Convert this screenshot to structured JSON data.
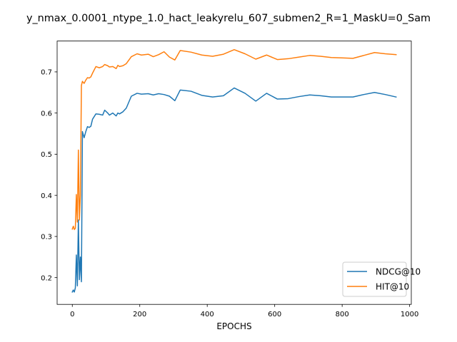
{
  "chart_data": {
    "type": "line",
    "title": "y_nmax_0.0001_ntype_1.0_hact_leakyrelu_607_submen2_R=1_MaskU=0_Sam",
    "xlabel": "EPOCHS",
    "ylabel": "",
    "xlim": [
      -45,
      1005
    ],
    "ylim": [
      0.135,
      0.775
    ],
    "xticks": [
      0,
      200,
      400,
      600,
      800,
      1000
    ],
    "yticks": [
      0.2,
      0.3,
      0.4,
      0.5,
      0.6,
      0.7
    ],
    "xtick_labels": [
      "0",
      "200",
      "400",
      "600",
      "800",
      "1000"
    ],
    "ytick_labels": [
      "0.2",
      "0.3",
      "0.4",
      "0.5",
      "0.6",
      "0.7"
    ],
    "legend_position": "lower-right",
    "grid": false,
    "series": [
      {
        "name": "NDCG@10",
        "color": "#1f77b4",
        "x": [
          0,
          3,
          6,
          9,
          12,
          15,
          18,
          21,
          24,
          27,
          30,
          35,
          40,
          45,
          50,
          55,
          60,
          70,
          80,
          90,
          96,
          105,
          110,
          120,
          130,
          135,
          140,
          150,
          160,
          175,
          192,
          205,
          225,
          240,
          256,
          272,
          288,
          304,
          320,
          352,
          384,
          416,
          448,
          480,
          512,
          544,
          576,
          608,
          640,
          672,
          704,
          736,
          768,
          800,
          832,
          864,
          896,
          928,
          960
        ],
        "y": [
          0.165,
          0.17,
          0.165,
          0.175,
          0.255,
          0.18,
          0.34,
          0.195,
          0.25,
          0.19,
          0.555,
          0.54,
          0.555,
          0.567,
          0.565,
          0.568,
          0.585,
          0.598,
          0.597,
          0.595,
          0.607,
          0.6,
          0.595,
          0.6,
          0.593,
          0.6,
          0.598,
          0.603,
          0.612,
          0.641,
          0.648,
          0.646,
          0.647,
          0.644,
          0.647,
          0.645,
          0.641,
          0.63,
          0.656,
          0.653,
          0.643,
          0.639,
          0.642,
          0.661,
          0.648,
          0.629,
          0.648,
          0.634,
          0.635,
          0.64,
          0.644,
          0.642,
          0.639,
          0.639,
          0.639,
          0.645,
          0.65,
          0.645,
          0.639
        ]
      },
      {
        "name": "HIT@10",
        "color": "#ff7f0e",
        "x": [
          0,
          3,
          6,
          9,
          12,
          15,
          18,
          21,
          24,
          27,
          30,
          35,
          40,
          45,
          50,
          55,
          60,
          70,
          80,
          90,
          96,
          105,
          110,
          120,
          130,
          135,
          140,
          150,
          160,
          175,
          192,
          205,
          225,
          240,
          256,
          272,
          288,
          304,
          320,
          352,
          384,
          416,
          448,
          480,
          512,
          544,
          576,
          608,
          640,
          672,
          704,
          736,
          768,
          800,
          832,
          864,
          896,
          928,
          960
        ],
        "y": [
          0.318,
          0.325,
          0.317,
          0.32,
          0.402,
          0.335,
          0.51,
          0.34,
          0.4,
          0.667,
          0.677,
          0.672,
          0.68,
          0.686,
          0.685,
          0.688,
          0.697,
          0.713,
          0.71,
          0.713,
          0.718,
          0.715,
          0.712,
          0.713,
          0.708,
          0.716,
          0.713,
          0.715,
          0.72,
          0.737,
          0.744,
          0.741,
          0.743,
          0.737,
          0.742,
          0.749,
          0.736,
          0.729,
          0.752,
          0.748,
          0.741,
          0.738,
          0.743,
          0.754,
          0.744,
          0.731,
          0.741,
          0.73,
          0.732,
          0.736,
          0.74,
          0.738,
          0.735,
          0.734,
          0.733,
          0.74,
          0.747,
          0.744,
          0.742
        ]
      }
    ]
  }
}
